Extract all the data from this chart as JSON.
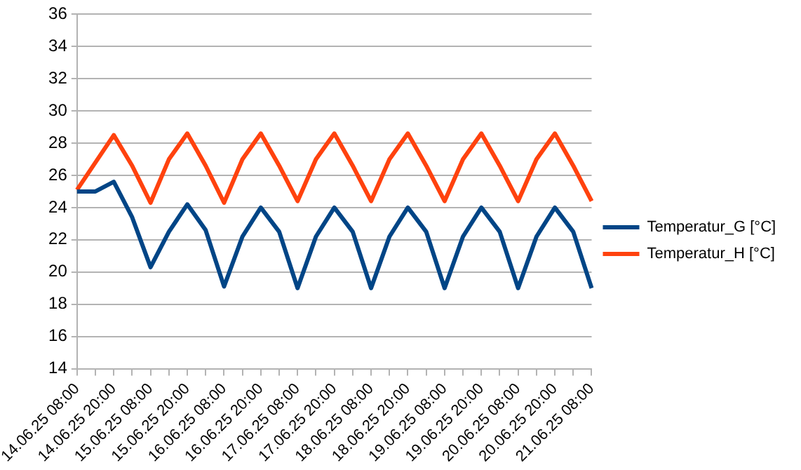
{
  "chart_data": {
    "type": "line",
    "categories": [
      "14.06.25 08:00",
      null,
      "14.06.25 20:00",
      null,
      "15.06.25 08:00",
      null,
      "15.06.25 20:00",
      null,
      "16.06.25 08:00",
      null,
      "16.06.25 20:00",
      null,
      "17.06.25 08:00",
      null,
      "17.06.25 20:00",
      null,
      "18.06.25 08:00",
      null,
      "18.06.25 20:00",
      null,
      "19.06.25 08:00",
      null,
      "19.06.25 20:00",
      null,
      "20.06.25 08:00",
      null,
      "20.06.25 20:00",
      null,
      "21.06.25 08:00"
    ],
    "series": [
      {
        "name": "Temperatur_G [°C]",
        "color": "#004586",
        "values": [
          25.0,
          25.0,
          25.6,
          23.4,
          20.3,
          22.5,
          24.2,
          22.6,
          19.1,
          22.2,
          24.0,
          22.5,
          19.0,
          22.2,
          24.0,
          22.5,
          19.0,
          22.2,
          24.0,
          22.5,
          19.0,
          22.2,
          24.0,
          22.5,
          19.0,
          22.2,
          24.0,
          22.5,
          19.0
        ]
      },
      {
        "name": "Temperatur_H [°C]",
        "color": "#ff420e",
        "values": [
          25.1,
          26.8,
          28.5,
          26.6,
          24.3,
          27.0,
          28.6,
          26.6,
          24.3,
          27.0,
          28.6,
          26.6,
          24.4,
          27.0,
          28.6,
          26.6,
          24.4,
          27.0,
          28.6,
          26.6,
          24.4,
          27.0,
          28.6,
          26.6,
          24.4,
          27.0,
          28.6,
          26.6,
          24.4
        ]
      }
    ],
    "ylim": [
      14,
      36
    ],
    "yticks": [
      14,
      16,
      18,
      20,
      22,
      24,
      26,
      28,
      30,
      32,
      34,
      36
    ],
    "grid": "y",
    "legend": "right",
    "marker": "none",
    "line_style": "solid"
  }
}
